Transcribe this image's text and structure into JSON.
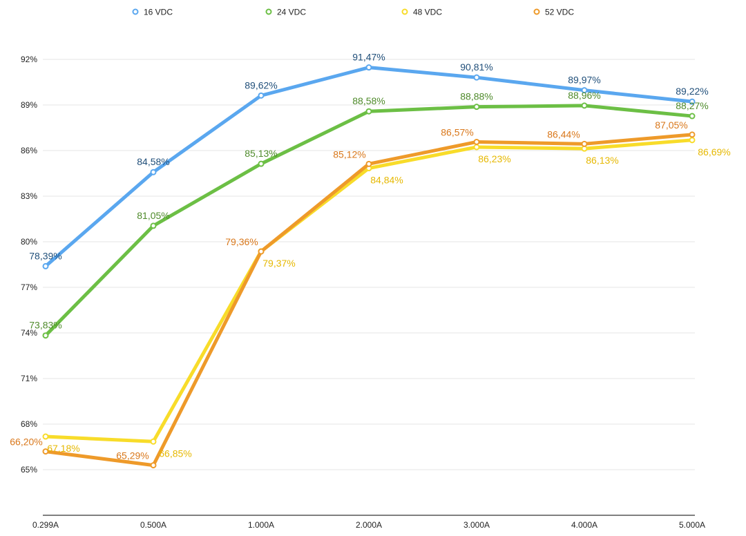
{
  "chart_data": {
    "type": "line",
    "title": "",
    "xlabel": "",
    "ylabel": "",
    "categories": [
      "0.299A",
      "0.500A",
      "1.000A",
      "2.000A",
      "3.000A",
      "4.000A",
      "5.000A"
    ],
    "y_ticks": [
      "65%",
      "68%",
      "71%",
      "74%",
      "77%",
      "80%",
      "83%",
      "86%",
      "89%",
      "92%"
    ],
    "ylim": [
      62,
      94.5
    ],
    "grid": true,
    "legend_position": "top",
    "series": [
      {
        "name": "16 VDC",
        "color": "#5aa7ef",
        "label_color": "#1f4e79",
        "values": [
          78.39,
          84.58,
          89.62,
          91.47,
          90.81,
          89.97,
          89.22
        ],
        "labels": [
          "78,39%",
          "84,58%",
          "89,62%",
          "91,47%",
          "90,81%",
          "89,97%",
          "89,22%"
        ]
      },
      {
        "name": "24 VDC",
        "color": "#6cbf45",
        "label_color": "#4e8a2a",
        "values": [
          73.83,
          81.05,
          85.13,
          88.58,
          88.88,
          88.96,
          88.27
        ],
        "labels": [
          "73,83%",
          "81,05%",
          "85,13%",
          "88,58%",
          "88,88%",
          "88,96%",
          "88,27%"
        ]
      },
      {
        "name": "48 VDC",
        "color": "#f8dc2a",
        "label_color": "#e6b800",
        "values": [
          67.18,
          66.85,
          79.37,
          84.84,
          86.23,
          86.13,
          86.69
        ],
        "labels": [
          "67,18%",
          "66,85%",
          "79,37%",
          "84,84%",
          "86,23%",
          "86,13%",
          "86,69%"
        ]
      },
      {
        "name": "52 VDC",
        "color": "#ee9a2a",
        "label_color": "#d9771a",
        "values": [
          66.2,
          65.29,
          79.36,
          85.12,
          86.57,
          86.44,
          87.05
        ],
        "labels": [
          "66,20%",
          "65,29%",
          "79,36%",
          "85,12%",
          "86,57%",
          "86,44%",
          "87,05%"
        ]
      }
    ]
  }
}
